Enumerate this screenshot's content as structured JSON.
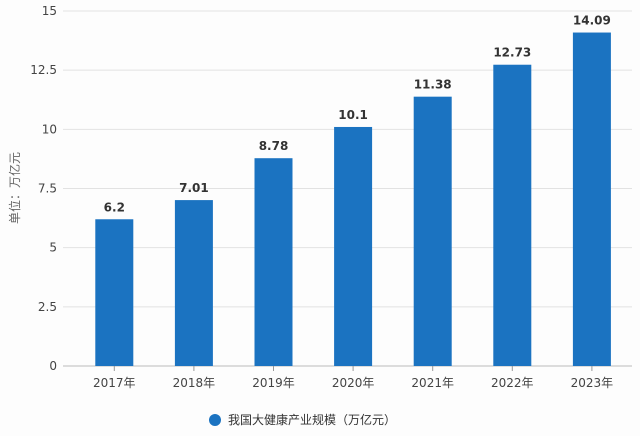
{
  "chart_data": {
    "type": "bar",
    "categories": [
      "2017年",
      "2018年",
      "2019年",
      "2020年",
      "2021年",
      "2022年",
      "2023年"
    ],
    "series": [
      {
        "name": "我国大健康产业规模（万亿元）",
        "values": [
          6.2,
          7.01,
          8.78,
          10.1,
          11.38,
          12.73,
          14.09
        ]
      }
    ],
    "data_labels": [
      "6.2",
      "7.01",
      "8.78",
      "10.1",
      "11.38",
      "12.73",
      "14.09"
    ],
    "ylabel": "单位：万亿元",
    "ylim": [
      0,
      15
    ],
    "yticks": [
      "0",
      "2.5",
      "5",
      "7.5",
      "10",
      "12.5",
      "15"
    ],
    "grid": true,
    "legend": "bottom",
    "colors": {
      "bar": "#1b73c1"
    }
  }
}
